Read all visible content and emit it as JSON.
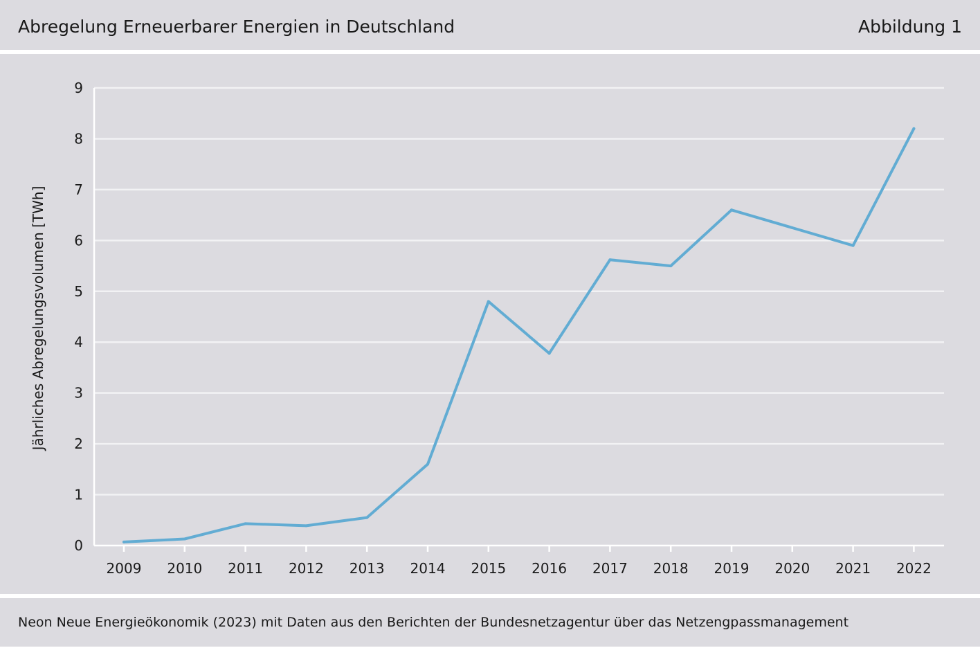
{
  "header": {
    "title": "Abregelung Erneuerbarer Energien in Deutschland",
    "figure_label": "Abbildung 1"
  },
  "footer": {
    "source": "Neon Neue Energieökonomik (2023) mit Daten aus den Berichten der Bundesnetzagentur über das Netzengpassmanagement"
  },
  "colors": {
    "panel_background": "#dcdbe0",
    "line": "#62acd3",
    "grid": "#f2f2f4",
    "axis": "#ffffff"
  },
  "chart_data": {
    "type": "line",
    "title": "Abregelung Erneuerbarer Energien in Deutschland",
    "xlabel": "",
    "ylabel": "Jährliches Abregelungsvolumen [TWh]",
    "x": [
      2009,
      2010,
      2011,
      2012,
      2013,
      2014,
      2015,
      2016,
      2017,
      2018,
      2019,
      2020,
      2021,
      2022
    ],
    "x_tick_labels": [
      "2009",
      "2010",
      "2011",
      "2012",
      "2013",
      "2014",
      "2015",
      "2016",
      "2017",
      "2018",
      "2019",
      "2020",
      "2021",
      "2022"
    ],
    "series": [
      {
        "values": [
          0.07,
          0.13,
          0.43,
          0.39,
          0.55,
          1.6,
          4.8,
          3.78,
          5.62,
          5.5,
          6.6,
          6.25,
          5.9,
          8.2
        ]
      }
    ],
    "ylim": [
      0,
      9
    ],
    "y_ticks": [
      0,
      1,
      2,
      3,
      4,
      5,
      6,
      7,
      8,
      9
    ],
    "y_tick_labels": [
      "0",
      "1",
      "2",
      "3",
      "4",
      "5",
      "6",
      "7",
      "8",
      "9"
    ],
    "grid": true,
    "legend": "none"
  }
}
